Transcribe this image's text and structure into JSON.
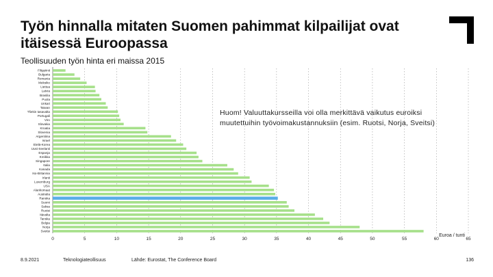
{
  "slide": {
    "title": "Työn hinnalla mitaten Suomen pahimmat kilpailijat ovat itäisessä Euroopassa",
    "subtitle": "Teollisuuden työn hinta eri maissa 2015",
    "note": "Huom! Valuuttakursseilla voi olla merkittävä vaikutus euroiksi muutettuihin työvoimakustannuksiin (esim. Ruotsi, Norja, Sveitsi)",
    "footer": {
      "date": "8.9.2021",
      "company": "Teknologiateollisuus",
      "source": "Lähde: Eurostat, The Conference Board",
      "page": "136"
    }
  },
  "colors": {
    "bar": "#a6e08a",
    "highlight": "#5aaee8",
    "grid": "#9a9a9a",
    "logo": "#000000"
  },
  "icons": {
    "logo": "corner-bracket-logo"
  },
  "chart_data": {
    "type": "bar",
    "orientation": "horizontal",
    "xlabel": "Euroa / tunti",
    "xlim": [
      0,
      65
    ],
    "xticks": [
      0,
      5,
      10,
      15,
      20,
      25,
      30,
      35,
      40,
      45,
      50,
      55,
      60,
      65
    ],
    "grid": "vertical dashed",
    "highlight_index": 31,
    "categories": [
      "Filippiinit",
      "Bulgaria",
      "Romania",
      "Meksiko",
      "Liettua",
      "Latvia",
      "Brasilia",
      "Puola",
      "Unkari",
      "Taiwan",
      "Tšekin tasavalta",
      "Portugali",
      "Viro",
      "Slovakia",
      "Kroatia",
      "Slovenia",
      "Argentiina",
      "Israel",
      "Etelä-Korea",
      "Uusi-Seelanti",
      "Espanja",
      "Kreikka",
      "Singapore",
      "Italia",
      "Kanada",
      "Iso-Britannia",
      "Irlanti",
      "Luxemburg",
      "USA",
      "Alankomaat",
      "Australia",
      "Ranska",
      "Suomi",
      "Saksa",
      "Ruotsi",
      "Itävalta",
      "Tanska",
      "Belgia",
      "Norja",
      "Sveitsi"
    ],
    "values": [
      2.0,
      3.4,
      4.3,
      5.3,
      6.6,
      6.7,
      7.3,
      7.6,
      8.3,
      8.6,
      10.2,
      10.4,
      10.6,
      11.1,
      14.5,
      14.8,
      18.5,
      19.3,
      20.4,
      20.9,
      22.5,
      22.8,
      23.4,
      27.3,
      28.3,
      29.0,
      30.8,
      31.1,
      33.8,
      34.6,
      34.8,
      35.2,
      36.6,
      36.9,
      37.8,
      41.0,
      42.3,
      43.3,
      48.0,
      58.0
    ]
  }
}
